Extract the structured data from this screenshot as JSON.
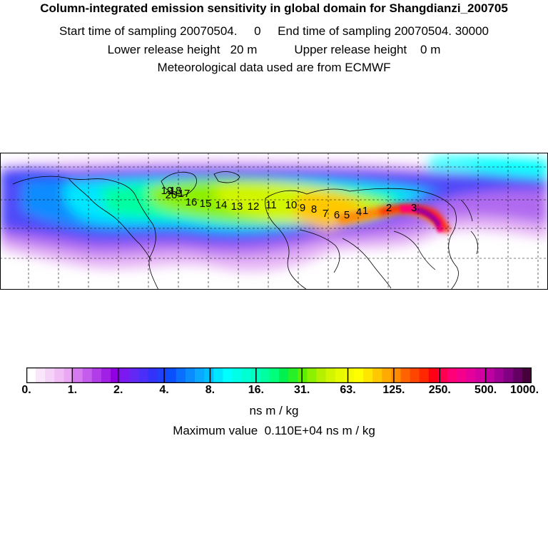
{
  "header": {
    "title": "Column-integrated emission sensitivity in global domain for Shangdianzi_200705",
    "sampling_line": "Start time of sampling 20070504.     0     End time of sampling 20070504. 30000",
    "release_line": "Lower release height   20 m           Upper release height    0 m",
    "met_line": "Meteorological data used are from ECMWF"
  },
  "map": {
    "background": "#ffffff",
    "trajectory_labels": [
      "1",
      "2",
      "3",
      "4",
      "5",
      "6",
      "7",
      "8",
      "9",
      "10",
      "11",
      "12",
      "13",
      "14",
      "15",
      "16",
      "17",
      "18",
      "19",
      "20"
    ]
  },
  "colorbar": {
    "tick_labels": [
      "0.",
      "1.",
      "2.",
      "4.",
      "8.",
      "16.",
      "31.",
      "63.",
      "125.",
      "250.",
      "500.",
      "1000."
    ],
    "colors": [
      "#ffffff",
      "#fae6fa",
      "#f5d2f8",
      "#f0bef5",
      "#eaa8f2",
      "#d67af0",
      "#c45cec",
      "#b13de8",
      "#a21fe6",
      "#9000e0",
      "#7a1af0",
      "#6428f5",
      "#4a2ff8",
      "#3232fa",
      "#2040fa",
      "#0a50ff",
      "#0a6eff",
      "#0a8cff",
      "#0aa8ff",
      "#00c0ff",
      "#00e6ff",
      "#00ffff",
      "#00ffe6",
      "#00ffd2",
      "#00ffbe",
      "#00ffa0",
      "#00ff7a",
      "#00f050",
      "#28f028",
      "#5af000",
      "#8cf000",
      "#b4f000",
      "#d2f500",
      "#e6fa00",
      "#f5fa00",
      "#ffff00",
      "#ffe600",
      "#ffc800",
      "#ffaa00",
      "#ff8c00",
      "#ff6400",
      "#ff4600",
      "#ff2800",
      "#ff0014",
      "#ff0050",
      "#ff0078",
      "#f5008c",
      "#e6009b",
      "#d200a0",
      "#be00a0",
      "#a00096",
      "#820082",
      "#640064",
      "#46003c"
    ],
    "unit": "ns m / kg",
    "max_value_line": "Maximum value  0.110E+04 ns m / kg"
  }
}
